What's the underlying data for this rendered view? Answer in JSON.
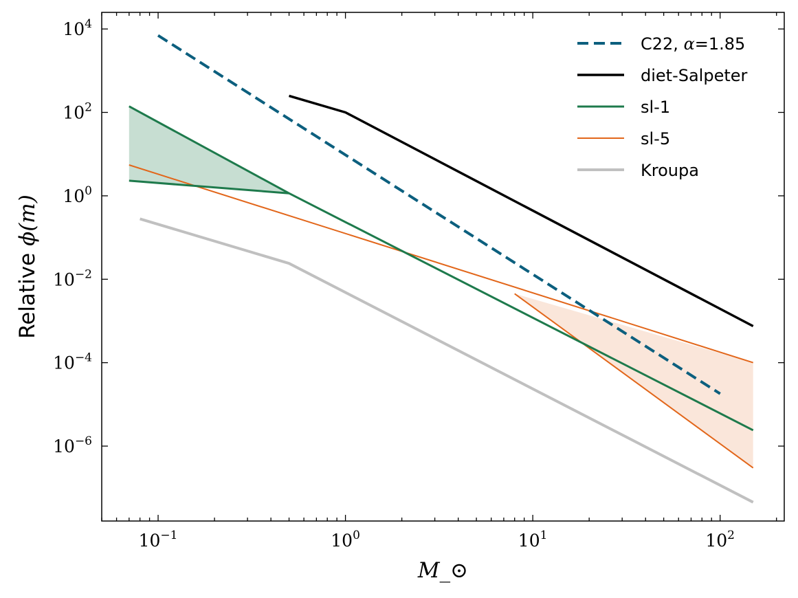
{
  "chart_data": {
    "type": "line",
    "xscale": "log",
    "yscale": "log",
    "xlim": [
      0.05,
      220
    ],
    "ylim": [
      1.6e-08,
      25000
    ],
    "xlabel": "M_⊙",
    "ylabel_text": "Relative ",
    "ylabel_math": "ϕ(m)",
    "x_ticks": [
      {
        "value": 0.1,
        "base": "10",
        "exp": "−1"
      },
      {
        "value": 1,
        "base": "10",
        "exp": "0"
      },
      {
        "value": 10,
        "base": "10",
        "exp": "1"
      },
      {
        "value": 100,
        "base": "10",
        "exp": "2"
      }
    ],
    "y_ticks": [
      {
        "value": 1e-06,
        "base": "10",
        "exp": "−6"
      },
      {
        "value": 0.0001,
        "base": "10",
        "exp": "−4"
      },
      {
        "value": 0.01,
        "base": "10",
        "exp": "−2"
      },
      {
        "value": 1,
        "base": "10",
        "exp": "0"
      },
      {
        "value": 100,
        "base": "10",
        "exp": "2"
      },
      {
        "value": 10000,
        "base": "10",
        "exp": "4"
      }
    ],
    "series": [
      {
        "name": "C22, α=1.85",
        "legend_prefix": "C22, ",
        "legend_math": "α",
        "legend_suffix": "=1.85",
        "color": "#0c5f7e",
        "style": "dashed",
        "width": 4,
        "x": [
          0.1,
          100
        ],
        "y": [
          7000,
          1.8e-05
        ]
      },
      {
        "name": "diet-Salpeter",
        "color": "#000000",
        "style": "solid",
        "width": 3.5,
        "x": [
          0.5,
          1,
          150
        ],
        "y": [
          250,
          100,
          0.00075
        ]
      },
      {
        "name": "sl-1",
        "color": "#1e7a4c",
        "style": "solid",
        "width": 3,
        "x": [
          0.5,
          150
        ],
        "y": [
          1.15,
          2.4e-06
        ]
      },
      {
        "name": "sl-5",
        "color": "#e2661a",
        "style": "solid",
        "width": 2,
        "x": [
          0.07,
          150
        ],
        "y": [
          5.5,
          0.0001
        ]
      },
      {
        "name": "Kroupa",
        "color": "#c0c0c0",
        "style": "solid",
        "width": 4,
        "x": [
          0.08,
          0.5,
          150
        ],
        "y": [
          0.28,
          0.024,
          4.5e-08
        ]
      }
    ],
    "extra_lines": [
      {
        "series": "sl-1",
        "x": [
          0.07,
          0.5
        ],
        "y": [
          140,
          1.15
        ]
      },
      {
        "series": "sl-1",
        "x": [
          0.07,
          0.5
        ],
        "y": [
          2.3,
          1.15
        ]
      },
      {
        "series": "sl-5",
        "x": [
          8,
          150
        ],
        "y": [
          0.0045,
          3e-07
        ]
      }
    ],
    "shaded_regions": [
      {
        "series": "sl-1",
        "fill": "#1e7a4c",
        "opacity": 0.25,
        "x": [
          0.07,
          0.5,
          0.07
        ],
        "y": [
          140,
          1.15,
          2.3
        ]
      },
      {
        "series": "sl-5",
        "fill": "#e2661a",
        "opacity": 0.16,
        "x": [
          8,
          150,
          150
        ],
        "y": [
          0.0045,
          0.0001,
          3e-07
        ]
      }
    ],
    "legend_position": "top-right"
  }
}
